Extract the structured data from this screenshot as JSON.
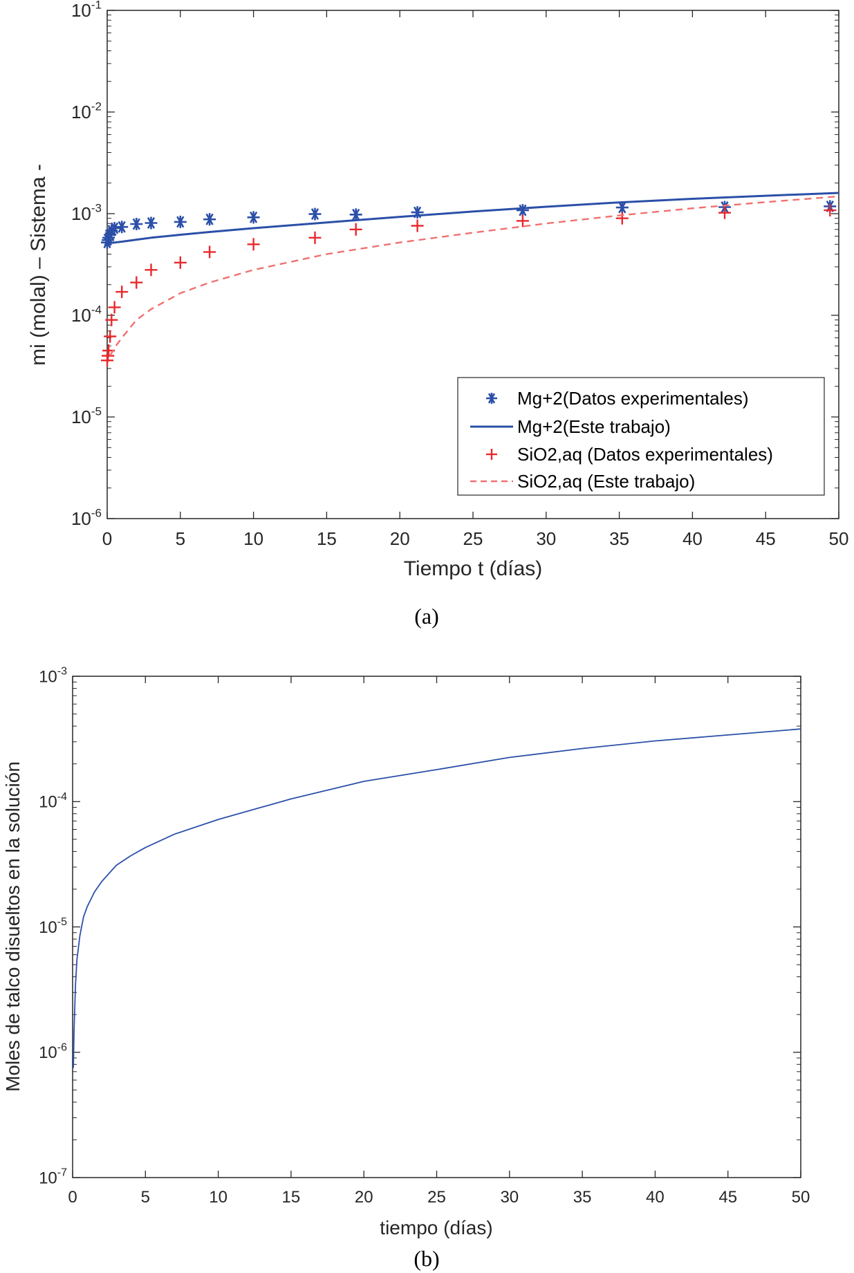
{
  "chart_data": [
    {
      "type": "scatter",
      "caption": "(a)",
      "xlabel": "Tiempo t (días)",
      "ylabel": "mi  (molal) – Sistema -",
      "xlim": [
        0,
        50
      ],
      "ylim": [
        1e-06,
        0.1
      ],
      "yscale": "log",
      "xticks": [
        0,
        5,
        10,
        15,
        20,
        25,
        30,
        35,
        40,
        45,
        50
      ],
      "xtick_labels": [
        "0",
        "5",
        "10",
        "15",
        "20",
        "25",
        "30",
        "35",
        "40",
        "45",
        "50"
      ],
      "yticks": [
        {
          "value": 1e-06,
          "base": "10",
          "exp": "-6"
        },
        {
          "value": 1e-05,
          "base": "10",
          "exp": "-5"
        },
        {
          "value": 0.0001,
          "base": "10",
          "exp": "-4"
        },
        {
          "value": 0.001,
          "base": "10",
          "exp": "-3"
        },
        {
          "value": 0.01,
          "base": "10",
          "exp": "-2"
        },
        {
          "value": 0.1,
          "base": "10",
          "exp": "-1"
        }
      ],
      "grid": false,
      "legend_position": "bottom-right",
      "series": [
        {
          "name": "Mg+2(Datos experimentales)",
          "kind": "markers",
          "marker": "asterisk",
          "color": "#2b4fa8",
          "x": [
            0,
            0.05,
            0.1,
            0.2,
            0.3,
            0.5,
            1,
            2,
            3,
            5,
            7,
            10,
            14.2,
            17,
            21.2,
            28.4,
            35.2,
            42.2,
            49.4
          ],
          "y": [
            0.00052,
            0.00055,
            0.00058,
            0.00062,
            0.00068,
            0.00072,
            0.00074,
            0.00079,
            0.00081,
            0.00083,
            0.00088,
            0.00092,
            0.00099,
            0.00098,
            0.00103,
            0.00108,
            0.00115,
            0.00116,
            0.00118
          ]
        },
        {
          "name": "Mg+2(Este trabajo)",
          "kind": "line",
          "style": "solid",
          "color": "#2b4fa8",
          "x": [
            0,
            1,
            2,
            3,
            5,
            7,
            10,
            15,
            20,
            25,
            30,
            35,
            40,
            45,
            50
          ],
          "y": [
            0.00051,
            0.00053,
            0.000555,
            0.00058,
            0.00062,
            0.00066,
            0.00072,
            0.00082,
            0.00093,
            0.00105,
            0.00117,
            0.00129,
            0.0014,
            0.0015,
            0.0016
          ]
        },
        {
          "name": "SiO2,aq (Datos experimentales)",
          "kind": "markers",
          "marker": "plus",
          "color": "#e8282b",
          "x": [
            0,
            0.05,
            0.1,
            0.2,
            0.3,
            0.5,
            1,
            2,
            3,
            5,
            7,
            10,
            14.2,
            17,
            21.2,
            28.4,
            35.2,
            42.2,
            49.4
          ],
          "y": [
            3.6e-05,
            4e-05,
            4.5e-05,
            6.2e-05,
            9e-05,
            0.00012,
            0.00017,
            0.00021,
            0.00028,
            0.00033,
            0.00042,
            0.0005,
            0.00058,
            0.0007,
            0.00076,
            0.00085,
            0.0009,
            0.00102,
            0.00108
          ]
        },
        {
          "name": "SiO2,aq (Este trabajo)",
          "kind": "line",
          "style": "dashed",
          "color": "#f07070",
          "x": [
            0.2,
            0.5,
            1,
            2,
            3,
            5,
            7,
            10,
            15,
            20,
            25,
            30,
            35,
            40,
            45,
            50
          ],
          "y": [
            4e-05,
            4.8e-05,
            6e-05,
            9e-05,
            0.000115,
            0.000165,
            0.00021,
            0.00028,
            0.0004,
            0.00052,
            0.00065,
            0.0008,
            0.00096,
            0.00113,
            0.0013,
            0.00148
          ]
        }
      ]
    },
    {
      "type": "line",
      "caption": "(b)",
      "xlabel": "tiempo (días)",
      "ylabel": "Moles de talco disueltos en la solución",
      "xlim": [
        0,
        50
      ],
      "ylim": [
        1e-07,
        0.001
      ],
      "yscale": "log",
      "xticks": [
        0,
        5,
        10,
        15,
        20,
        25,
        30,
        35,
        40,
        45,
        50
      ],
      "xtick_labels": [
        "0",
        "5",
        "10",
        "15",
        "20",
        "25",
        "30",
        "35",
        "40",
        "45",
        "50"
      ],
      "yticks": [
        {
          "value": 1e-07,
          "base": "10",
          "exp": "-7"
        },
        {
          "value": 1e-06,
          "base": "10",
          "exp": "-6"
        },
        {
          "value": 1e-05,
          "base": "10",
          "exp": "-5"
        },
        {
          "value": 0.0001,
          "base": "10",
          "exp": "-4"
        },
        {
          "value": 0.001,
          "base": "10",
          "exp": "-3"
        }
      ],
      "grid": false,
      "series": [
        {
          "kind": "line",
          "style": "solid",
          "color": "#2b4fa8",
          "x": [
            0.05,
            0.1,
            0.2,
            0.3,
            0.5,
            0.75,
            1,
            1.5,
            2,
            3,
            4,
            5,
            7,
            10,
            15,
            20,
            25,
            30,
            35,
            40,
            45,
            50
          ],
          "y": [
            7.5e-07,
            1.5e-06,
            3.5e-06,
            5.5e-06,
            8.5e-06,
            1.2e-05,
            1.45e-05,
            1.9e-05,
            2.3e-05,
            3.1e-05,
            3.7e-05,
            4.3e-05,
            5.5e-05,
            7.2e-05,
            0.000105,
            0.000145,
            0.00018,
            0.000225,
            0.000265,
            0.000305,
            0.00034,
            0.00038
          ]
        }
      ]
    }
  ]
}
